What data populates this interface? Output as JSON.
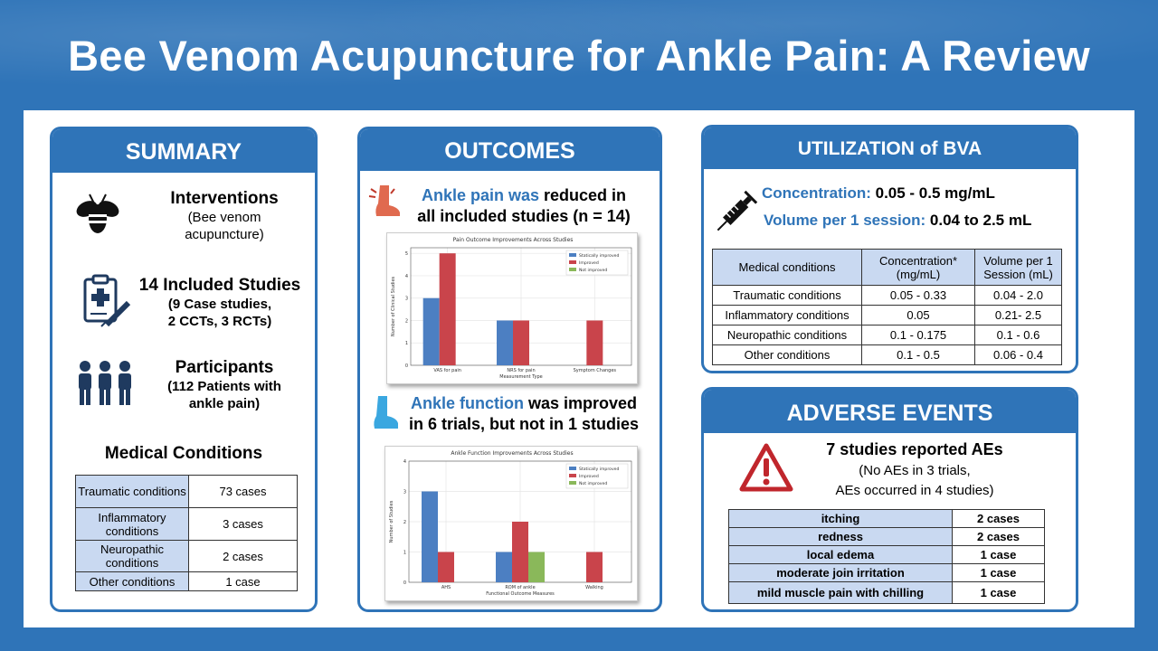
{
  "title": "Bee Venom Acupuncture  for Ankle Pain: A Review",
  "summary": {
    "header": "SUMMARY",
    "interventions_title": "Interventions",
    "interventions_sub1": "(Bee venom",
    "interventions_sub2": "acupuncture)",
    "studies_title": "14 Included Studies",
    "studies_sub1": "(9 Case studies,",
    "studies_sub2": "2 CCTs, 3 RCTs)",
    "participants_title": "Participants",
    "participants_sub1": "(112 Patients with",
    "participants_sub2": "ankle pain)",
    "conditions_title": "Medical Conditions",
    "conditions": [
      {
        "name": "Traumatic conditions",
        "cases": "73 cases"
      },
      {
        "name": "Inflammatory conditions",
        "cases": "3 cases"
      },
      {
        "name": "Neuropathic conditions",
        "cases": "2 cases"
      },
      {
        "name": "Other conditions",
        "cases": "1 case"
      }
    ],
    "icons": [
      "bee-icon",
      "clipboard-syringe-icon",
      "people-icon"
    ]
  },
  "outcomes": {
    "header": "OUTCOMES",
    "pain_text_blue": "Ankle pain was",
    "pain_text_rest1": " reduced in",
    "pain_text_line2": "all included studies (n = 14)",
    "function_text_blue": "Ankle function",
    "function_text_rest1": " was improved",
    "function_text_line2": "in 6 trials, but not in 1 studies",
    "icons": [
      "sore-foot-icon",
      "foot-icon"
    ]
  },
  "chart_data": [
    {
      "type": "bar",
      "title": "Pain Outcome Improvements Across Studies",
      "xlabel": "Measurement Type",
      "ylabel": "Number of Clinical Studies",
      "categories": [
        "VAS for pain",
        "NRS for pain",
        "Symptom Changes"
      ],
      "ylim": [
        0,
        5.25
      ],
      "yticks": [
        "0",
        "1",
        "2",
        "3",
        "4",
        "5"
      ],
      "series": [
        {
          "name": "Statically improved",
          "color": "#4c7fc2",
          "values": [
            3,
            2,
            0
          ]
        },
        {
          "name": "Improved",
          "color": "#c9444b",
          "values": [
            5,
            2,
            2
          ]
        },
        {
          "name": "Not improved",
          "color": "#8ab85a",
          "values": [
            0,
            0,
            0
          ]
        }
      ],
      "grid": true,
      "legend": "top-right"
    },
    {
      "type": "bar",
      "title": "Ankle Function Improvements Across Studies",
      "xlabel": "Functional Outcome Measures",
      "ylabel": "Number of Studies",
      "categories": [
        "AHS",
        "ROM of ankle",
        "Walking"
      ],
      "ylim": [
        0,
        4
      ],
      "yticks": [
        "0",
        "1",
        "2",
        "3",
        "4"
      ],
      "series": [
        {
          "name": "Statically improved",
          "color": "#4c7fc2",
          "values": [
            3,
            1,
            0
          ]
        },
        {
          "name": "Improved",
          "color": "#c9444b",
          "values": [
            1,
            2,
            1
          ]
        },
        {
          "name": "Not improved",
          "color": "#8ab85a",
          "values": [
            0,
            1,
            0
          ]
        }
      ],
      "grid": true,
      "legend": "top-right"
    }
  ],
  "utilization": {
    "header": "UTILIZATION of BVA",
    "conc_label": "Concentration:",
    "conc_value": " 0.05 - 0.5 mg/mL",
    "vol_label": "Volume per 1 session:",
    "vol_value": " 0.04 to 2.5 mL",
    "table_headers": [
      "Medical conditions",
      "Concentration* (mg/mL)",
      "Volume per 1 Session (mL)"
    ],
    "rows": [
      [
        "Traumatic conditions",
        "0.05 - 0.33",
        "0.04 - 2.0"
      ],
      [
        "Inflammatory conditions",
        "0.05",
        "0.21- 2.5"
      ],
      [
        "Neuropathic conditions",
        "0.1 - 0.175",
        "0.1 - 0.6"
      ],
      [
        "Other conditions",
        "0.1 - 0.5",
        "0.06 - 0.4"
      ]
    ],
    "icons": [
      "syringe-icon"
    ]
  },
  "adverse": {
    "header": "ADVERSE EVENTS",
    "line1": "7 studies reported AEs",
    "line2": "(No AEs in 3 trials,",
    "line3": "AEs occurred in 4 studies)",
    "rows": [
      [
        "itching",
        "2 cases"
      ],
      [
        "redness",
        "2 cases"
      ],
      [
        "local edema",
        "1 case"
      ],
      [
        "moderate join irritation",
        "1 case"
      ],
      [
        "mild muscle pain with chilling",
        "1 case"
      ]
    ],
    "icons": [
      "warning-icon"
    ]
  }
}
